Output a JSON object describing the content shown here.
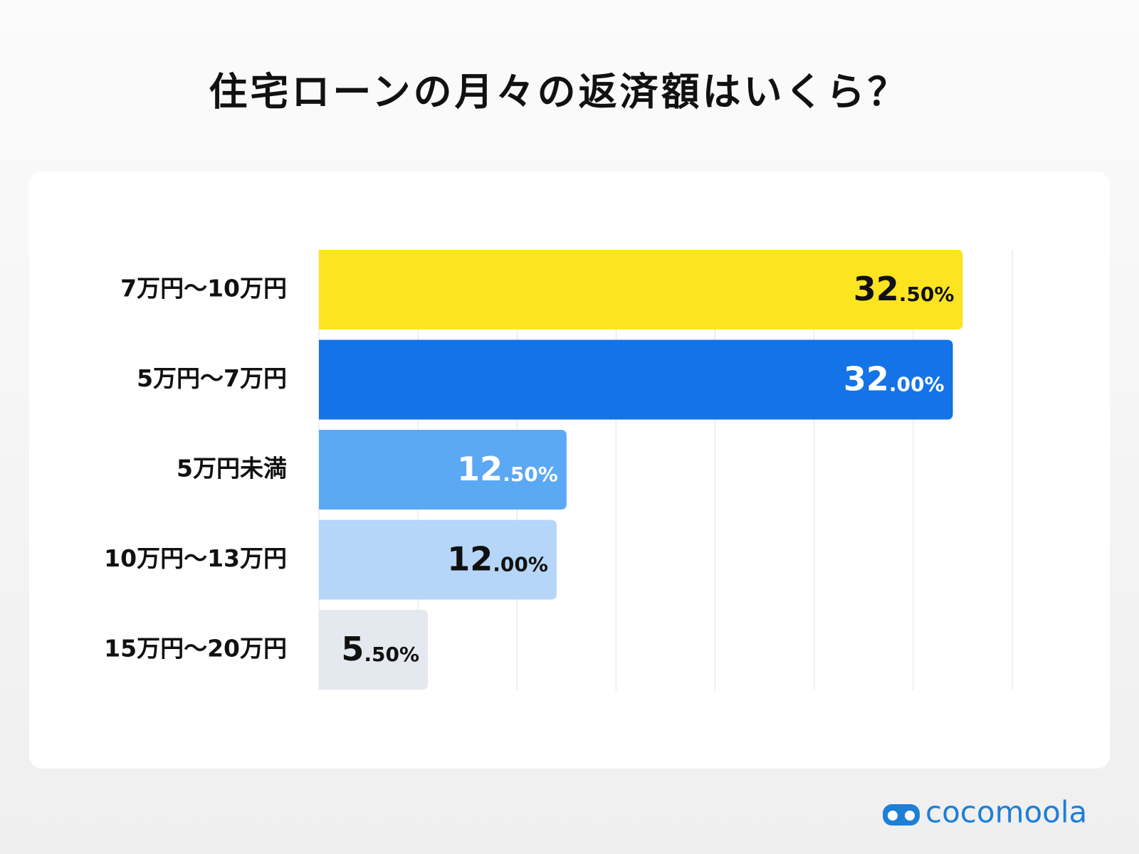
{
  "chart_data": {
    "type": "hbar",
    "title": "住宅ローンの月々の返済額はいくら？",
    "categories": [
      "7万円〜10万円",
      "5万円〜7万円",
      "5万円未満",
      "10万円〜13万円",
      "15万円〜20万円"
    ],
    "values": [
      32.5,
      32,
      12.5,
      12,
      5.5
    ],
    "value_labels": [
      "32.50%",
      "32.00%",
      "12.50%",
      "12.00%",
      "5.50%"
    ],
    "colors": [
      "#fde421",
      "#1473e6",
      "#5ba8f5",
      "#b5d6f8",
      "#e4e8ef"
    ],
    "xlim": [
      0,
      35
    ],
    "xticks": [
      0,
      5,
      10,
      15,
      20,
      25,
      30,
      35
    ],
    "grid": true
  },
  "footer": {
    "logo": "cocomoola"
  }
}
